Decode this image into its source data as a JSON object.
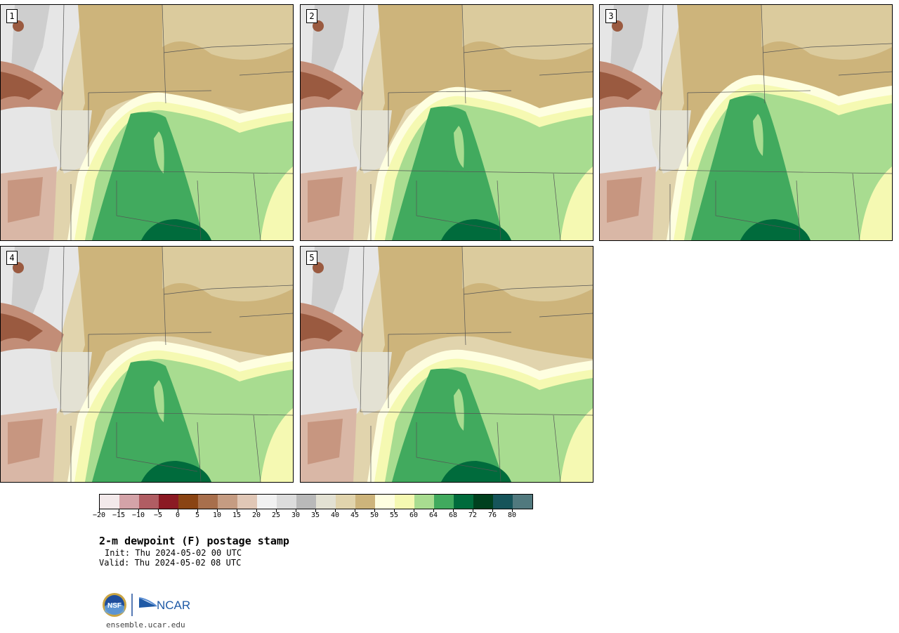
{
  "panels": [
    {
      "label": "1"
    },
    {
      "label": "2"
    },
    {
      "label": "3"
    },
    {
      "label": "4"
    },
    {
      "label": "5"
    }
  ],
  "colorbar": {
    "colors": [
      "#f3e9ea",
      "#d4a3a8",
      "#b05d63",
      "#8b1a24",
      "#8a4413",
      "#a86f4c",
      "#c59c82",
      "#e0c7b6",
      "#f1f1f1",
      "#dcdcdc",
      "#b9b9b9",
      "#e3e1d3",
      "#e1d4ad",
      "#cdb47b",
      "#fefee0",
      "#f5f9b2",
      "#a8dc90",
      "#41aa5e",
      "#006b3c",
      "#00401e",
      "#16545a",
      "#51797e"
    ],
    "tick_labels": [
      "-20",
      "-15",
      "-10",
      "-5",
      "0",
      "5",
      "10",
      "15",
      "20",
      "25",
      "30",
      "35",
      "40",
      "45",
      "50",
      "55",
      "60",
      "64",
      "68",
      "72",
      "76",
      "80"
    ]
  },
  "title": "2-m dewpoint (F) postage stamp",
  "init": "Init: Thu 2024-05-02 00 UTC",
  "valid": "Valid: Thu 2024-05-02 08 UTC",
  "logos": {
    "nsf": "NSF",
    "ncar": "NCAR"
  },
  "site": "ensemble.ucar.edu"
}
